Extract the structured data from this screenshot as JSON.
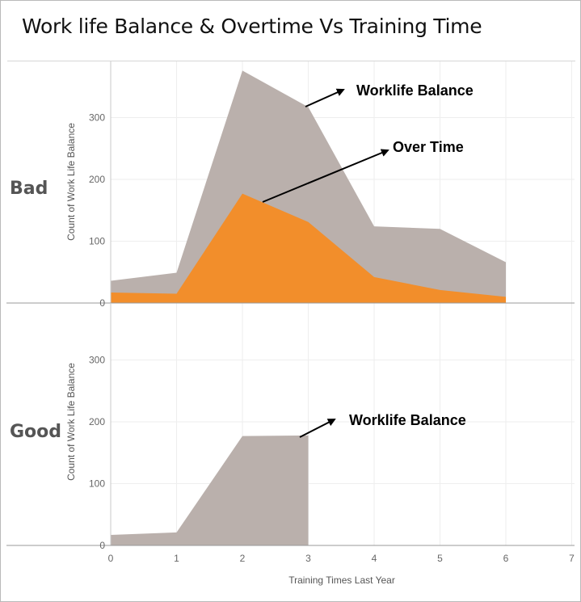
{
  "chart_data": {
    "title": "Work life Balance & Overtime Vs Training Time",
    "type": "area",
    "x_label": "Training Times Last Year",
    "x_ticks": [
      "0",
      "1",
      "2",
      "3",
      "4",
      "5",
      "6",
      "7"
    ],
    "x_range": [
      0,
      7
    ],
    "y_label": "Count of Work Life Balance",
    "y_ticks": [
      "0",
      "100",
      "200",
      "300"
    ],
    "y_range": [
      0,
      380
    ],
    "grid": true,
    "panels": [
      {
        "row": "Bad",
        "x": [
          0,
          1,
          2,
          3,
          4,
          5,
          6
        ],
        "series": [
          {
            "name": "Worklife Balance",
            "color": "#bab0ac",
            "values": [
              36,
              49,
              376,
              317,
              124,
              120,
              66
            ]
          },
          {
            "name": "Over Time",
            "color": "#f28e2b",
            "values": [
              17,
              15,
              177,
              131,
              42,
              21,
              10
            ]
          }
        ],
        "annotations": [
          {
            "text": "Worklife Balance",
            "series": "Worklife Balance",
            "x": 3,
            "y": 317
          },
          {
            "text": "Over Time",
            "series": "Over Time",
            "x": 2.3,
            "y": 165
          }
        ]
      },
      {
        "row": "Good",
        "x": [
          0,
          1,
          2,
          3
        ],
        "series": [
          {
            "name": "Worklife Balance",
            "color": "#bab0ac",
            "values": [
              17,
              21,
              177,
              178
            ]
          }
        ],
        "annotations": [
          {
            "text": "Worklife Balance",
            "series": "Worklife Balance",
            "x": 3,
            "y": 178
          }
        ]
      }
    ]
  }
}
